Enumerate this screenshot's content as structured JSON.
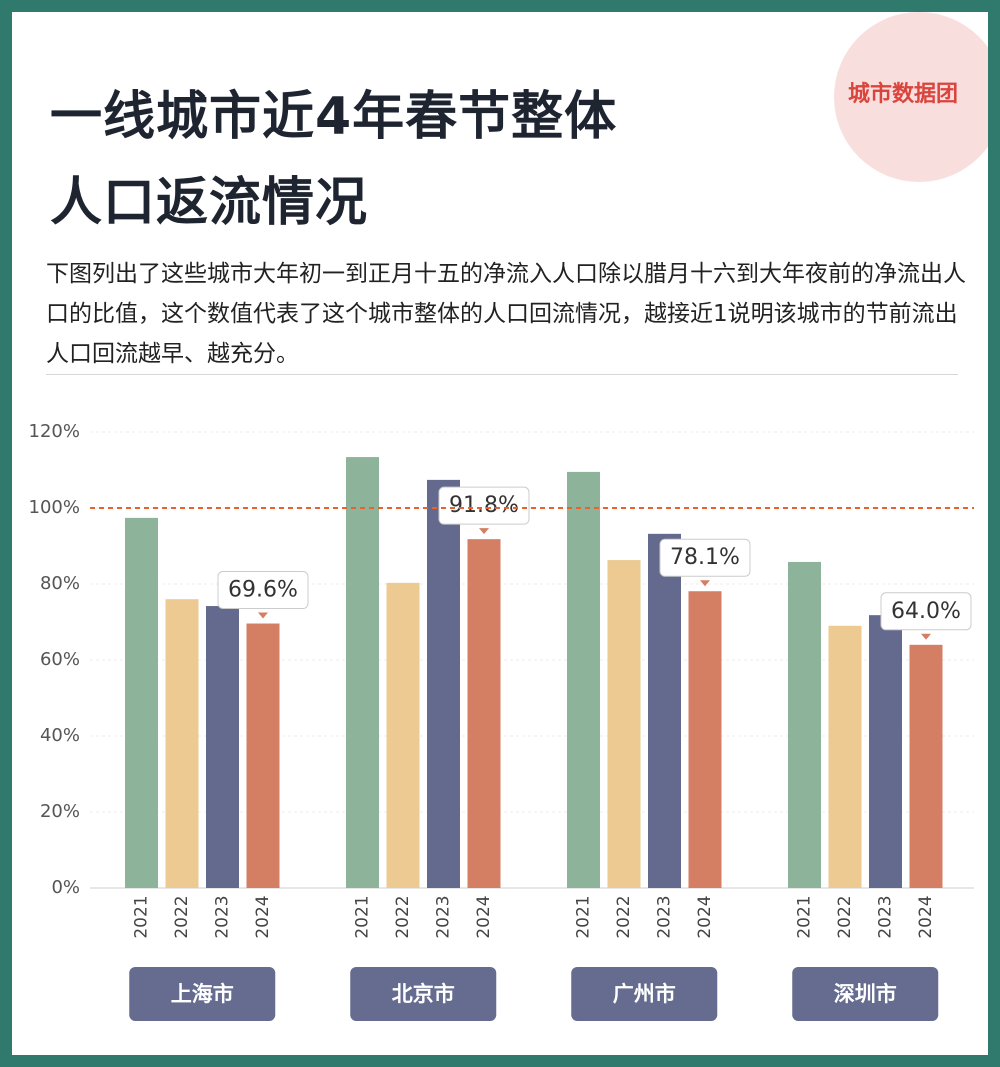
{
  "logo": "城市数据团",
  "chart_data": {
    "type": "bar",
    "title_lines": [
      "一线城市近4年春节整体",
      "人口返流情况"
    ],
    "subtitle": "下图列出了这些城市大年初一到正月十五的净流入人口除以腊月十六到大年夜前的净流出人口的比值，这个数值代表了这个城市整体的人口回流情况，越接近1说明该城市的节前流出人口回流越早、越充分。",
    "categories": [
      "上海市",
      "北京市",
      "广州市",
      "深圳市"
    ],
    "series": [
      {
        "name": "2021",
        "color": "#8db39a",
        "values": [
          97.4,
          113.4,
          109.5,
          85.8
        ]
      },
      {
        "name": "2022",
        "color": "#ecca92",
        "values": [
          76,
          80.3,
          86.3,
          69
        ]
      },
      {
        "name": "2023",
        "color": "#646a8e",
        "values": [
          74.2,
          107.4,
          93.2,
          71.8
        ]
      },
      {
        "name": "2024",
        "color": "#d47f63",
        "values": [
          69.6,
          91.8,
          78.1,
          64.0
        ],
        "value_labels": [
          "69.6%",
          "91.8%",
          "78.1%",
          "64.0%"
        ]
      }
    ],
    "ylim": [
      0,
      120
    ],
    "yticks": [
      {
        "value": 0,
        "label": "0%"
      },
      {
        "value": 20,
        "label": "20%"
      },
      {
        "value": 40,
        "label": "40%"
      },
      {
        "value": 60,
        "label": "60%"
      },
      {
        "value": 80,
        "label": "80%"
      },
      {
        "value": 100,
        "label": "100%"
      },
      {
        "value": 120,
        "label": "120%"
      }
    ],
    "grid": true,
    "reference_line": 100,
    "reference_color": "#e8622c",
    "category_color": "#656c8f"
  }
}
